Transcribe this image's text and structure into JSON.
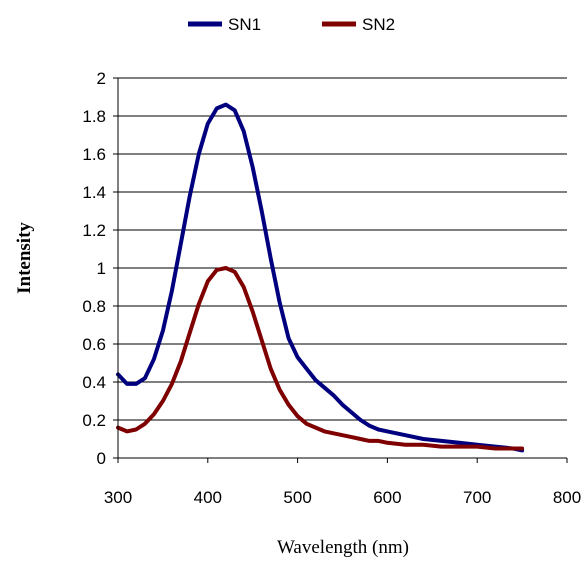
{
  "chart_data": {
    "type": "line",
    "xlabel": "Wavelength (nm)",
    "ylabel": "Intensity",
    "xlim": [
      300,
      800
    ],
    "ylim": [
      0,
      2
    ],
    "x_ticks": [
      "300",
      "400",
      "500",
      "600",
      "700",
      "800"
    ],
    "y_ticks": [
      "0",
      "0.2",
      "0.4",
      "0.6",
      "0.8",
      "1",
      "1.2",
      "1.4",
      "1.6",
      "1.8",
      "2"
    ],
    "grid": "horizontal",
    "legend_position": "top",
    "x": [
      300,
      310,
      320,
      330,
      340,
      350,
      360,
      370,
      380,
      390,
      400,
      410,
      420,
      430,
      440,
      450,
      460,
      470,
      480,
      490,
      500,
      510,
      520,
      530,
      540,
      550,
      560,
      570,
      580,
      590,
      600,
      620,
      640,
      660,
      680,
      700,
      720,
      740,
      750
    ],
    "series": [
      {
        "name": "SN1",
        "color": "#00007f",
        "values": [
          0.44,
          0.39,
          0.39,
          0.42,
          0.52,
          0.67,
          0.88,
          1.13,
          1.38,
          1.6,
          1.76,
          1.84,
          1.86,
          1.83,
          1.72,
          1.53,
          1.3,
          1.05,
          0.82,
          0.63,
          0.53,
          0.47,
          0.41,
          0.37,
          0.33,
          0.28,
          0.24,
          0.2,
          0.17,
          0.15,
          0.14,
          0.12,
          0.1,
          0.09,
          0.08,
          0.07,
          0.06,
          0.05,
          0.04
        ]
      },
      {
        "name": "SN2",
        "color": "#7f0000",
        "values": [
          0.16,
          0.14,
          0.15,
          0.18,
          0.23,
          0.3,
          0.39,
          0.51,
          0.66,
          0.81,
          0.93,
          0.99,
          1.0,
          0.98,
          0.9,
          0.77,
          0.62,
          0.47,
          0.36,
          0.28,
          0.22,
          0.18,
          0.16,
          0.14,
          0.13,
          0.12,
          0.11,
          0.1,
          0.09,
          0.09,
          0.08,
          0.07,
          0.07,
          0.06,
          0.06,
          0.06,
          0.05,
          0.05,
          0.05
        ]
      }
    ]
  }
}
